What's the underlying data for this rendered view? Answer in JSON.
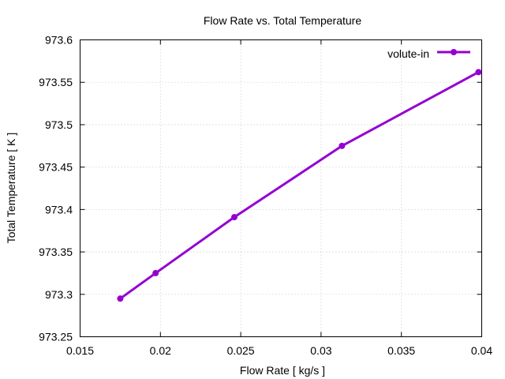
{
  "chart_data": {
    "type": "line",
    "title": "Flow Rate vs. Total Temperature",
    "xlabel": "Flow Rate [ kg/s ]",
    "ylabel": "Total Temperature [ K ]",
    "xlim": [
      0.015,
      0.04
    ],
    "ylim": [
      973.25,
      973.6
    ],
    "xticks": [
      0.015,
      0.02,
      0.025,
      0.03,
      0.035,
      0.04
    ],
    "xtick_labels": [
      "0.015",
      "0.02",
      "0.025",
      "0.03",
      "0.035",
      "0.04"
    ],
    "yticks": [
      973.25,
      973.3,
      973.35,
      973.4,
      973.45,
      973.5,
      973.55,
      973.6
    ],
    "ytick_labels": [
      "973.25",
      "973.3",
      "973.35",
      "973.4",
      "973.45",
      "973.5",
      "973.55",
      "973.6"
    ],
    "grid": true,
    "legend_position": "top-right",
    "series": [
      {
        "name": "volute-in",
        "color": "#9400d3",
        "marker": "circle",
        "x": [
          0.0175,
          0.0197,
          0.0246,
          0.0313,
          0.0398
        ],
        "y": [
          973.295,
          973.325,
          973.391,
          973.475,
          973.562
        ]
      }
    ]
  }
}
